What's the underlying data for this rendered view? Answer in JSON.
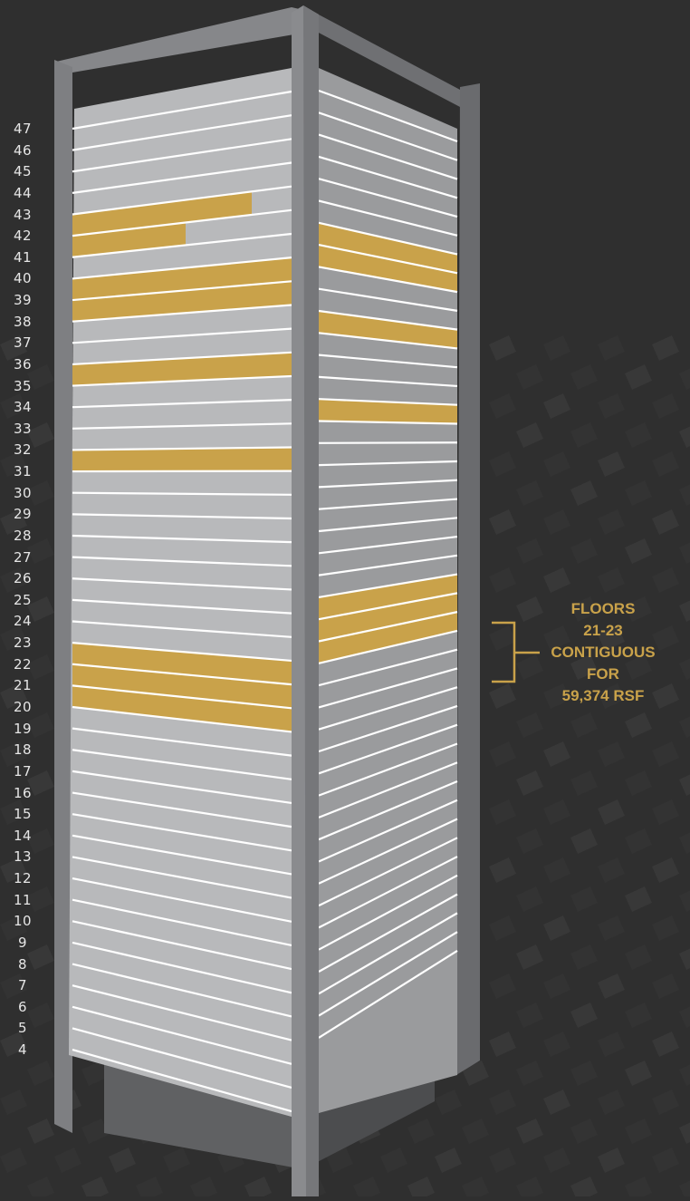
{
  "floors": [
    "47",
    "46",
    "45",
    "44",
    "43",
    "42",
    "41",
    "40",
    "39",
    "38",
    "37",
    "36",
    "35",
    "34",
    "33",
    "32",
    "31",
    "30",
    "29",
    "28",
    "27",
    "26",
    "25",
    "24",
    "23",
    "22",
    "21",
    "20",
    "19",
    "18",
    "17",
    "16",
    "15",
    "14",
    "13",
    "12",
    "11",
    "10",
    "9",
    "8",
    "7",
    "6",
    "5",
    "4"
  ],
  "highlighted_floors": [
    43,
    42,
    40,
    39,
    36,
    32,
    23,
    22,
    21
  ],
  "callout": {
    "line1": "FLOORS",
    "line2": "21-23",
    "line3": "CONTIGUOUS",
    "line4": "FOR",
    "line5": "59,374 RSF"
  },
  "colors": {
    "background": "#2f2f2f",
    "left_face": "#b8b9bb",
    "right_face": "#9a9b9d",
    "frame": "#7d7e80",
    "highlight": "#c9a24a",
    "stripe": "#ffffff",
    "label": "#e6e6e6"
  }
}
